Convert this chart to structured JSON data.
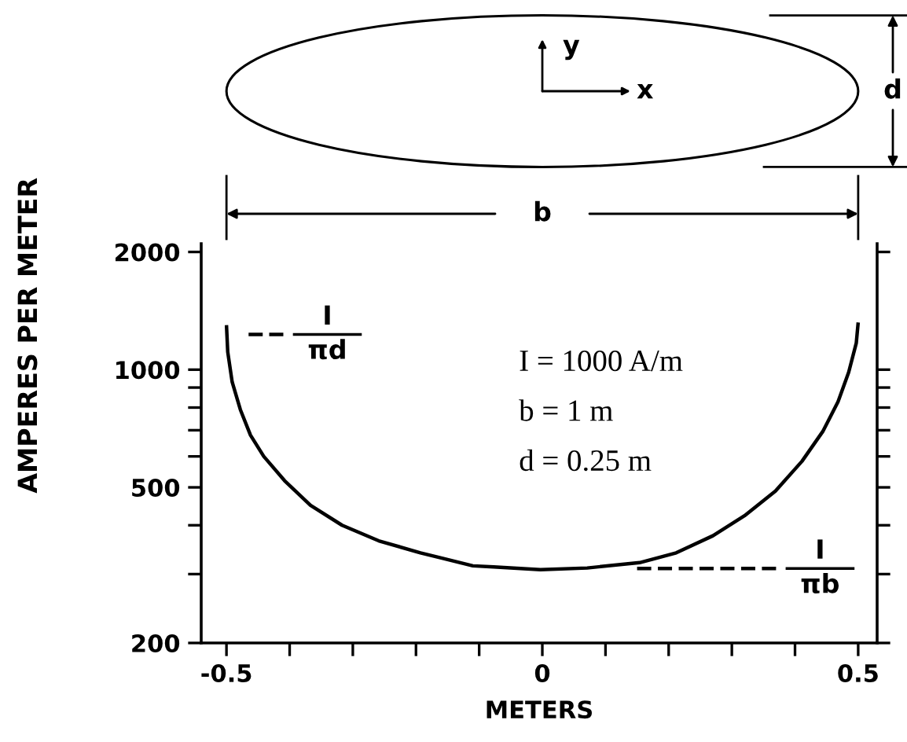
{
  "chart_data": {
    "type": "line",
    "xlabel": "METERS",
    "ylabel": "AMPERES PER METER",
    "log": "y",
    "xlim": [
      -0.54,
      0.53
    ],
    "ylim": [
      200,
      2100
    ],
    "xticks": [
      -0.5,
      {
        "value": -0.4,
        "label": null
      },
      {
        "value": -0.3,
        "label": null
      },
      {
        "value": -0.2,
        "label": null
      },
      {
        "value": -0.1,
        "label": null
      },
      0,
      {
        "value": 0.1,
        "label": null
      },
      {
        "value": 0.2,
        "label": null
      },
      {
        "value": 0.3,
        "label": null
      },
      {
        "value": 0.4,
        "label": null
      },
      0.5
    ],
    "yticks": [
      200,
      {
        "value": 300,
        "label": null
      },
      {
        "value": 400,
        "label": null
      },
      500,
      {
        "value": 600,
        "label": null
      },
      {
        "value": 700,
        "label": null
      },
      {
        "value": 800,
        "label": null
      },
      {
        "value": 900,
        "label": null
      },
      1000,
      2000
    ],
    "series": [
      {
        "color": "#000000",
        "line_style": "solid",
        "x": [
          -0.5,
          -0.498,
          -0.491,
          -0.478,
          -0.462,
          -0.441,
          -0.408,
          -0.367,
          -0.317,
          -0.259,
          -0.193,
          -0.16,
          -0.11,
          -0.077,
          -0.003,
          0.071,
          0.154,
          0.212,
          0.27,
          0.32,
          0.369,
          0.411,
          0.444,
          0.468,
          0.485,
          0.497,
          0.5
        ],
        "values": [
          1300,
          1110,
          930,
          790,
          680,
          600,
          520,
          450,
          400,
          365,
          340,
          330,
          315,
          313,
          308,
          311,
          321,
          340,
          376,
          423,
          489,
          583,
          695,
          827,
          985,
          1170,
          1320
        ]
      },
      {
        "color": "#000000",
        "line_style": "dashed",
        "x": [
          -0.465,
          -0.41
        ],
        "values": [
          1230,
          1230
        ]
      },
      {
        "color": "#000000",
        "line_style": "dashed",
        "x": [
          0.15,
          0.37
        ],
        "values": [
          310,
          310
        ]
      }
    ],
    "annotations": [
      "I = 1000 A/m",
      "b = 1 m",
      "d = 0.25 m",
      "I\nπd",
      "I\nπb",
      "y",
      "x",
      "b",
      "d"
    ]
  }
}
